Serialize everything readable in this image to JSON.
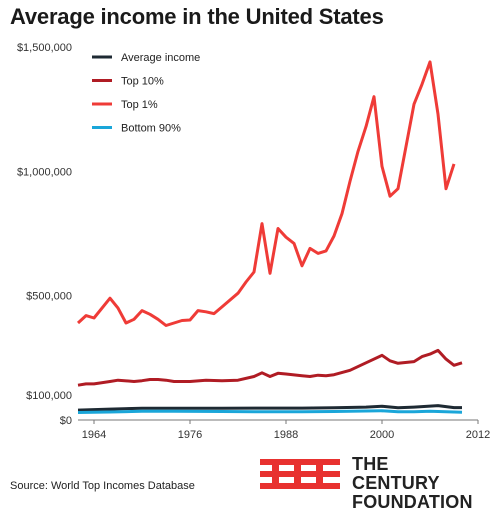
{
  "header": {
    "title": "Average income in the United States"
  },
  "footer": {
    "source": "Source: World Top Incomes Database",
    "brand_line1": "THE CENTURY",
    "brand_line2": "FOUNDATION"
  },
  "colors": {
    "average": "#1e2a33",
    "top10": "#b01c24",
    "top1": "#ef3b37",
    "bottom90": "#1aa6d9",
    "brand_red": "#e8312f"
  },
  "chart_data": {
    "type": "line",
    "title": "Average income in the United States",
    "x_ticks": [
      1964,
      1976,
      1988,
      2000,
      2012
    ],
    "xlim": [
      1962,
      2012
    ],
    "y_ticks": [
      {
        "value": 0,
        "label": "$0"
      },
      {
        "value": 100000,
        "label": "$100,000"
      },
      {
        "value": 500000,
        "label": "$500,000"
      },
      {
        "value": 1000000,
        "label": "$1,000,000"
      },
      {
        "value": 1500000,
        "label": "$1,500,000"
      }
    ],
    "ylim": [
      0,
      1500000
    ],
    "grid": false,
    "legend_position": "top-left",
    "series": [
      {
        "name": "Average income",
        "color_key": "average",
        "points": [
          [
            1962,
            40000
          ],
          [
            1966,
            44000
          ],
          [
            1970,
            47000
          ],
          [
            1974,
            47000
          ],
          [
            1980,
            47000
          ],
          [
            1986,
            48000
          ],
          [
            1990,
            48000
          ],
          [
            1994,
            49000
          ],
          [
            1998,
            52000
          ],
          [
            2000,
            55000
          ],
          [
            2002,
            49000
          ],
          [
            2004,
            52000
          ],
          [
            2006,
            56000
          ],
          [
            2007,
            58000
          ],
          [
            2008,
            54000
          ],
          [
            2009,
            50000
          ],
          [
            2010,
            50000
          ]
        ]
      },
      {
        "name": "Top 10%",
        "color_key": "top10",
        "points": [
          [
            1962,
            140000
          ],
          [
            1963,
            145000
          ],
          [
            1964,
            145000
          ],
          [
            1966,
            155000
          ],
          [
            1967,
            160000
          ],
          [
            1969,
            155000
          ],
          [
            1970,
            158000
          ],
          [
            1971,
            163000
          ],
          [
            1972,
            163000
          ],
          [
            1973,
            160000
          ],
          [
            1974,
            155000
          ],
          [
            1976,
            155000
          ],
          [
            1978,
            160000
          ],
          [
            1980,
            158000
          ],
          [
            1982,
            160000
          ],
          [
            1984,
            175000
          ],
          [
            1985,
            190000
          ],
          [
            1986,
            175000
          ],
          [
            1987,
            188000
          ],
          [
            1988,
            185000
          ],
          [
            1990,
            178000
          ],
          [
            1991,
            175000
          ],
          [
            1992,
            180000
          ],
          [
            1993,
            178000
          ],
          [
            1994,
            182000
          ],
          [
            1996,
            200000
          ],
          [
            1998,
            230000
          ],
          [
            2000,
            260000
          ],
          [
            2001,
            238000
          ],
          [
            2002,
            228000
          ],
          [
            2004,
            235000
          ],
          [
            2005,
            255000
          ],
          [
            2006,
            265000
          ],
          [
            2007,
            280000
          ],
          [
            2008,
            245000
          ],
          [
            2009,
            220000
          ],
          [
            2010,
            230000
          ]
        ]
      },
      {
        "name": "Top 1%",
        "color_key": "top1",
        "points": [
          [
            1962,
            390000
          ],
          [
            1963,
            420000
          ],
          [
            1964,
            410000
          ],
          [
            1966,
            490000
          ],
          [
            1967,
            450000
          ],
          [
            1968,
            390000
          ],
          [
            1969,
            405000
          ],
          [
            1970,
            440000
          ],
          [
            1971,
            425000
          ],
          [
            1972,
            405000
          ],
          [
            1973,
            380000
          ],
          [
            1974,
            390000
          ],
          [
            1975,
            400000
          ],
          [
            1976,
            402000
          ],
          [
            1977,
            440000
          ],
          [
            1978,
            435000
          ],
          [
            1979,
            428000
          ],
          [
            1980,
            455000
          ],
          [
            1982,
            510000
          ],
          [
            1983,
            555000
          ],
          [
            1984,
            595000
          ],
          [
            1985,
            790000
          ],
          [
            1986,
            590000
          ],
          [
            1987,
            770000
          ],
          [
            1988,
            735000
          ],
          [
            1989,
            710000
          ],
          [
            1990,
            620000
          ],
          [
            1991,
            690000
          ],
          [
            1992,
            670000
          ],
          [
            1993,
            680000
          ],
          [
            1994,
            740000
          ],
          [
            1995,
            830000
          ],
          [
            1996,
            960000
          ],
          [
            1997,
            1080000
          ],
          [
            1998,
            1180000
          ],
          [
            1999,
            1300000
          ],
          [
            2000,
            1020000
          ],
          [
            2001,
            900000
          ],
          [
            2002,
            930000
          ],
          [
            2003,
            1100000
          ],
          [
            2004,
            1270000
          ],
          [
            2005,
            1350000
          ],
          [
            2006,
            1440000
          ],
          [
            2007,
            1230000
          ],
          [
            2008,
            930000
          ],
          [
            2009,
            1030000
          ]
        ]
      },
      {
        "name": "Bottom 90%",
        "color_key": "bottom90",
        "points": [
          [
            1962,
            30000
          ],
          [
            1966,
            32000
          ],
          [
            1970,
            35000
          ],
          [
            1974,
            35000
          ],
          [
            1980,
            34000
          ],
          [
            1986,
            33000
          ],
          [
            1990,
            33000
          ],
          [
            1994,
            34000
          ],
          [
            1998,
            36000
          ],
          [
            2000,
            37000
          ],
          [
            2002,
            33000
          ],
          [
            2004,
            33000
          ],
          [
            2006,
            35000
          ],
          [
            2008,
            33000
          ],
          [
            2010,
            31000
          ]
        ]
      }
    ]
  }
}
